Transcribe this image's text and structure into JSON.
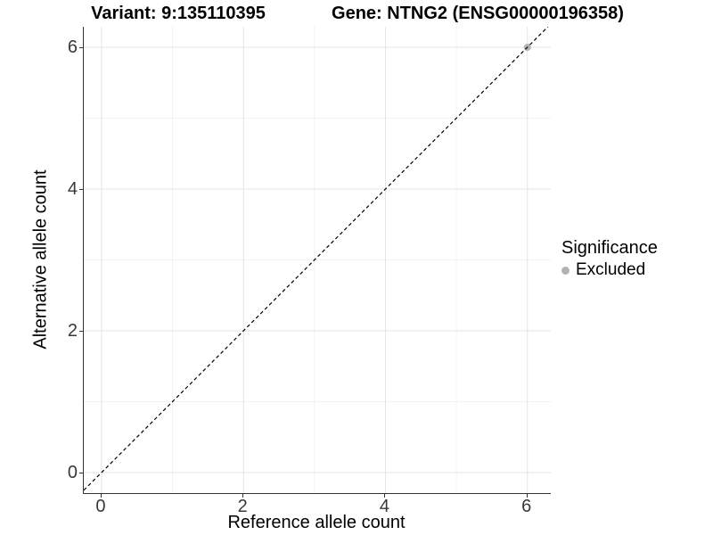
{
  "titles": {
    "left": "Variant: 9:135110395",
    "right": "Gene: NTNG2 (ENSG00000196358)"
  },
  "axes": {
    "x": {
      "label": "Reference allele count",
      "tick_labels": [
        "0",
        "2",
        "4",
        "6"
      ]
    },
    "y": {
      "label": "Alternative allele count",
      "tick_labels": [
        "0",
        "2",
        "4",
        "6"
      ]
    }
  },
  "legend": {
    "title": "Significance",
    "items": [
      {
        "label": "Excluded",
        "color": "#b3b3b3"
      }
    ]
  },
  "colors": {
    "background": "#ffffff",
    "grid_major": "#e4e4e4",
    "grid_minor": "#f2f2f2",
    "axis_line": "#333333",
    "tick_text": "#383838",
    "dashed_line": "#000000",
    "point": "#b3b3b3"
  },
  "chart_data": {
    "type": "scatter",
    "title": "Variant: 9:135110395 | Gene: NTNG2 (ENSG00000196358)",
    "xlabel": "Reference allele count",
    "ylabel": "Alternative allele count",
    "xlim": [
      -0.25,
      6.33
    ],
    "ylim": [
      -0.29,
      6.29
    ],
    "x_ticks": [
      0,
      2,
      4,
      6
    ],
    "y_ticks": [
      0,
      2,
      4,
      6
    ],
    "x_minor_ticks": [
      1,
      3,
      5
    ],
    "y_minor_ticks": [
      1,
      3,
      5
    ],
    "grid": true,
    "legend_position": "right",
    "series": [
      {
        "name": "Excluded",
        "color": "#b3b3b3",
        "points": [
          [
            6,
            6
          ]
        ]
      }
    ],
    "reference_line": {
      "type": "identity",
      "equation": "y = x",
      "style": "dashed",
      "color": "#000000"
    }
  }
}
